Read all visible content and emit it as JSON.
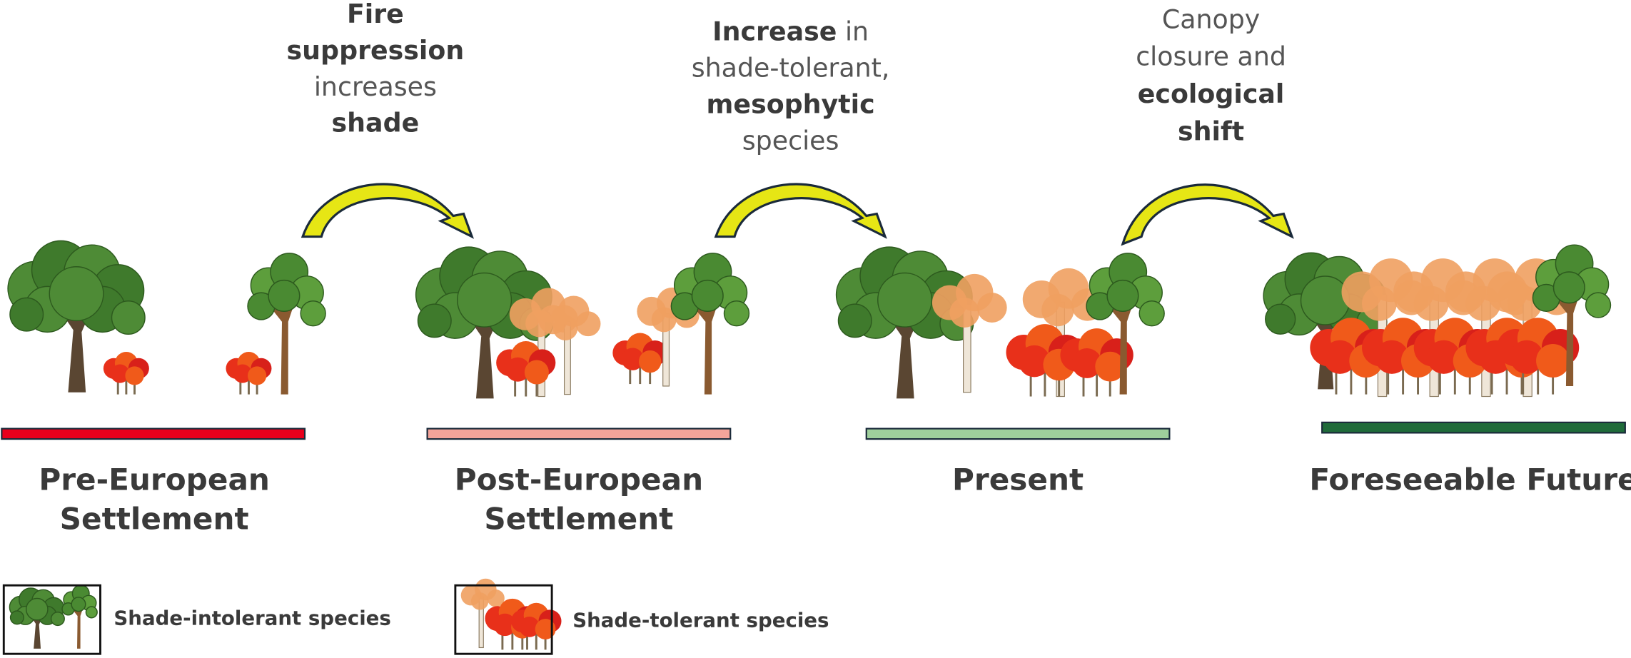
{
  "transitions": [
    {
      "lines": [
        [
          {
            "text": "Fire",
            "bold": true
          }
        ],
        [
          {
            "text": "suppression",
            "bold": true
          }
        ],
        [
          {
            "text": "increases",
            "bold": false
          }
        ],
        [
          {
            "text": "shade",
            "bold": true
          }
        ]
      ]
    },
    {
      "lines": [
        [
          {
            "text": "Increase",
            "bold": true
          },
          {
            "text": " in",
            "bold": false
          }
        ],
        [
          {
            "text": "shade-tolerant,",
            "bold": false
          }
        ],
        [
          {
            "text": "mesophytic",
            "bold": true
          }
        ],
        [
          {
            "text": "species",
            "bold": false
          }
        ]
      ]
    },
    {
      "lines": [
        [
          {
            "text": "Canopy",
            "bold": false
          }
        ],
        [
          {
            "text": "closure and",
            "bold": false
          }
        ],
        [
          {
            "text": "ecological",
            "bold": true
          }
        ],
        [
          {
            "text": "shift",
            "bold": true
          }
        ]
      ]
    }
  ],
  "stages": [
    {
      "label": [
        "Pre-European",
        "Settlement"
      ],
      "color": "#e8001c"
    },
    {
      "label": [
        "Post-European",
        "Settlement"
      ],
      "color": "#f4a49a"
    },
    {
      "label": [
        "Present"
      ],
      "color": "#9fcf9c"
    },
    {
      "label": [
        "Foreseeable Future"
      ],
      "color": "#1f6b3a"
    }
  ],
  "legend": [
    {
      "label": "Shade-intolerant species"
    },
    {
      "label": "Shade-tolerant species"
    }
  ]
}
